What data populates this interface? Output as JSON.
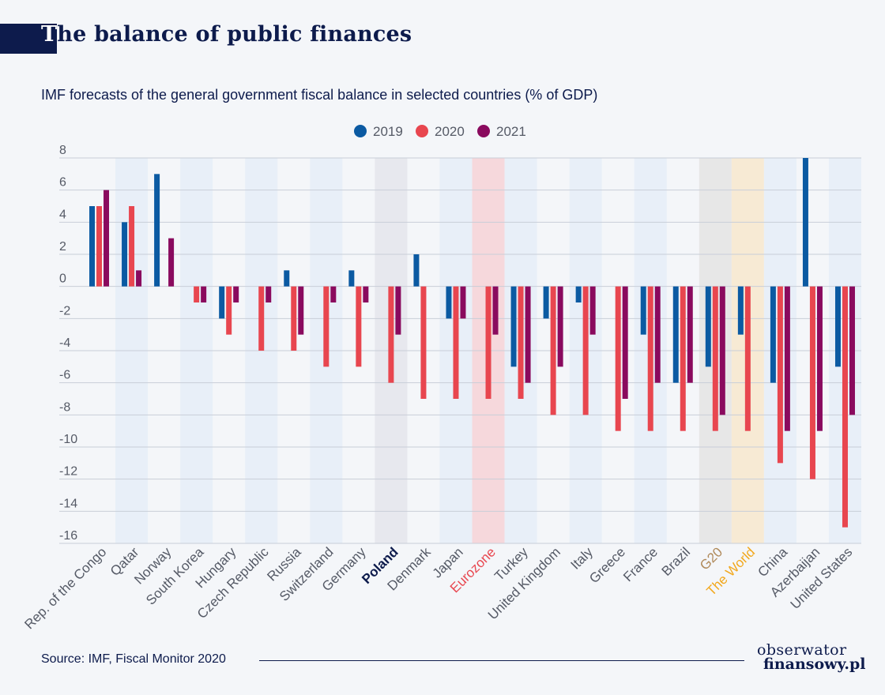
{
  "header": {
    "title": "The balance of public finances",
    "title_first_letter": "T",
    "title_rest": "he balance of public finances",
    "subtitle": "IMF forecasts of the general government fiscal balance in selected countries (% of GDP)"
  },
  "footer": {
    "source": "Source: IMF, Fiscal Monitor 2020",
    "logo_line1": "obserwator",
    "logo_line2": "finansowy.pl"
  },
  "colors": {
    "2019": "#0b5aa2",
    "2020": "#e8464f",
    "2021": "#8a0a5e",
    "text": "#0d1b4c",
    "axis_text": "#555a66",
    "band_light_blue": "#e8eff8",
    "band_poland": "#e7e8ee",
    "band_eurozone": "#f6d8dc",
    "band_g20": "#e7e7e7",
    "band_world": "#f7ead4",
    "label_poland": "#0d1b4c",
    "label_eurozone": "#e8464f",
    "label_g20": "#b08a5a",
    "label_world": "#f2a81d"
  },
  "chart_data": {
    "type": "bar",
    "title": "IMF forecasts of the general government fiscal balance in selected countries (% of GDP)",
    "ylim": [
      -16,
      8
    ],
    "yticks": [
      8,
      6,
      4,
      2,
      0,
      -2,
      -4,
      -6,
      -8,
      -10,
      -12,
      -14,
      -16
    ],
    "grid": true,
    "legend_position": "top-center",
    "categories": [
      "Rep. of the Congo",
      "Qatar",
      "Norway",
      "South Korea",
      "Hungary",
      "Czech Republic",
      "Russia",
      "Switzerland",
      "Germany",
      "Poland",
      "Denmark",
      "Japan",
      "Eurozone",
      "Turkey",
      "United Kingdom",
      "Italy",
      "Greece",
      "France",
      "Brazil",
      "G20",
      "The World",
      "China",
      "Azerbaijan",
      "United States"
    ],
    "series": [
      {
        "name": "2019",
        "values": [
          5,
          4,
          7,
          0,
          -2,
          0,
          1,
          0,
          1,
          0,
          2,
          -2,
          0,
          -5,
          -2,
          -1,
          0,
          -3,
          -6,
          -5,
          -3,
          -6,
          8,
          -5
        ]
      },
      {
        "name": "2020",
        "values": [
          5,
          5,
          0,
          -1,
          -3,
          -4,
          -4,
          -5,
          -5,
          -6,
          -7,
          -7,
          -7,
          -7,
          -8,
          -8,
          -9,
          -9,
          -9,
          -9,
          -9,
          -11,
          -12,
          -15
        ]
      },
      {
        "name": "2021",
        "values": [
          6,
          1,
          3,
          -1,
          -1,
          -1,
          -3,
          -1,
          -1,
          -3,
          0,
          -2,
          -3,
          -6,
          -5,
          -3,
          -7,
          -6,
          -6,
          -8,
          0,
          -9,
          -9,
          -8
        ]
      }
    ],
    "highlighted_categories": {
      "Poland": "poland",
      "Eurozone": "eurozone",
      "G20": "g20",
      "The World": "world"
    }
  }
}
